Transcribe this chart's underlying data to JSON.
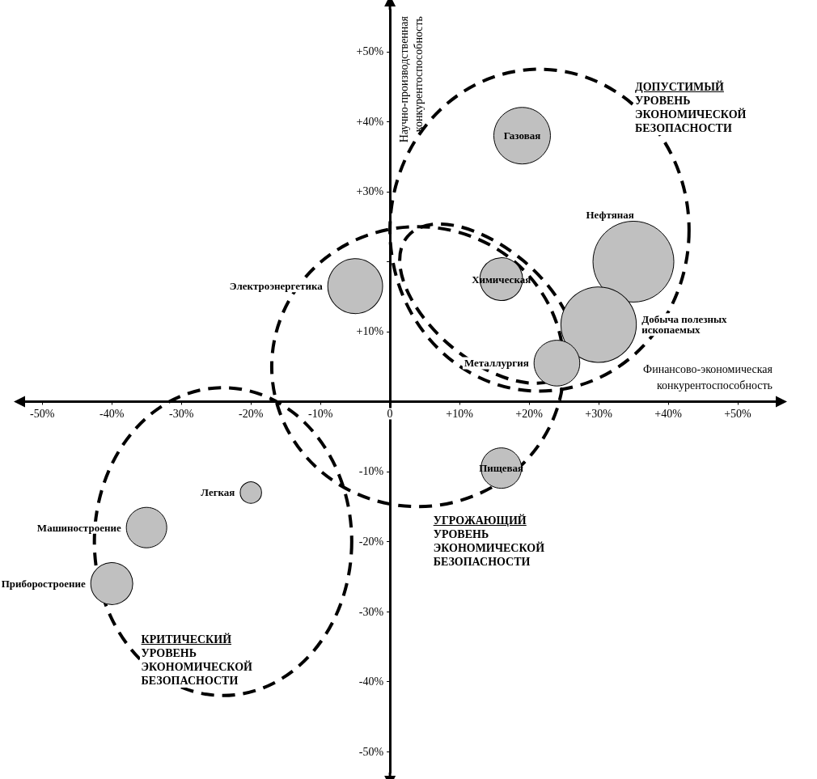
{
  "chart_data": {
    "type": "bubble",
    "xlabel": "Финансово-экономическая конкурентоспособность",
    "ylabel": "Научно-производственная конкурентоспособность",
    "xlim": [
      -52,
      55
    ],
    "ylim": [
      -53,
      56
    ],
    "xticks": [
      {
        "value": -50,
        "label": "-50%"
      },
      {
        "value": -40,
        "label": "-40%"
      },
      {
        "value": -30,
        "label": "-30%"
      },
      {
        "value": -20,
        "label": "-20%"
      },
      {
        "value": -10,
        "label": "-10%"
      },
      0,
      {
        "value": 10,
        "label": "+10%"
      },
      {
        "value": 20,
        "label": "+20%"
      },
      {
        "value": 30,
        "label": "+30%"
      },
      {
        "value": 40,
        "label": "+40%"
      },
      {
        "value": 50,
        "label": "+50%"
      }
    ],
    "yticks": [
      {
        "value": -50,
        "label": "-50%"
      },
      {
        "value": -40,
        "label": "-40%"
      },
      {
        "value": -30,
        "label": "-30%"
      },
      {
        "value": -20,
        "label": "-20%"
      },
      {
        "value": -10,
        "label": "-10%"
      },
      {
        "value": 10,
        "label": "+10%"
      },
      {
        "value": 20,
        "label": null
      },
      {
        "value": 30,
        "label": "+30%"
      },
      {
        "value": 40,
        "label": "+40%"
      },
      {
        "value": 50,
        "label": "+50%"
      }
    ],
    "series": [
      {
        "name": "Газовая",
        "color": "#c0c0c0",
        "x": [
          19
        ],
        "values": [
          38
        ],
        "sizes": [
          0.49
        ]
      },
      {
        "name": "Нефтяная",
        "color": "#c0c0c0",
        "x": [
          35
        ],
        "values": [
          20
        ],
        "sizes": [
          1
        ]
      },
      {
        "name": "Добыча полезных ископаемых",
        "color": "#c0c0c0",
        "x": [
          30
        ],
        "values": [
          11
        ],
        "sizes": [
          0.87
        ]
      },
      {
        "name": "Металлургия",
        "color": "#c0c0c0",
        "x": [
          24
        ],
        "values": [
          5.5
        ],
        "sizes": [
          0.32
        ]
      },
      {
        "name": "Химическая",
        "color": "#c0c0c0",
        "x": [
          16
        ],
        "values": [
          17.5
        ],
        "sizes": [
          0.28
        ]
      },
      {
        "name": "Электроэнергетика",
        "color": "#c0c0c0",
        "x": [
          -5
        ],
        "values": [
          16.5
        ],
        "sizes": [
          0.46
        ]
      },
      {
        "name": "Пищевая",
        "color": "#c0c0c0",
        "x": [
          16
        ],
        "values": [
          -9.5
        ],
        "sizes": [
          0.25
        ]
      },
      {
        "name": "Легкая",
        "color": "#c0c0c0",
        "x": [
          -20
        ],
        "values": [
          -13
        ],
        "sizes": [
          0.07
        ]
      },
      {
        "name": "Машиностроение",
        "color": "#c0c0c0",
        "x": [
          -35
        ],
        "values": [
          -18
        ],
        "sizes": [
          0.25
        ]
      },
      {
        "name": "Приборостроение",
        "color": "#c0c0c0",
        "x": [
          -40
        ],
        "values": [
          -26
        ],
        "sizes": [
          0.27
        ]
      }
    ],
    "annotations": [
      "ДОПУСТИМЫЙ УРОВЕНЬ ЭКОНОМИЧЕСКОЙ БЕЗОПАСНОСТИ",
      "УГРОЖАЮЩИЙ УРОВЕНЬ ЭКОНОМИЧЕСКОЙ БЕЗОПАСНОСТИ",
      "КРИТИЧЕСКИЙ УРОВЕНЬ ЭКОНОМИЧЕСКОЙ БЕЗОПАСНОСТИ"
    ]
  }
}
